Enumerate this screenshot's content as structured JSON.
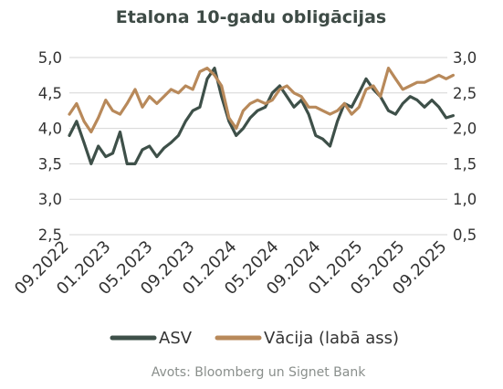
{
  "chart_data": {
    "type": "line",
    "title": "Etalona 10-gadu obligācijas",
    "source": "Avots: Bloomberg un Signet Bank",
    "x_ticks": [
      "09.2022",
      "01.2023",
      "05.2023",
      "09.2023",
      "01.2024",
      "05.2024",
      "09.2024",
      "01.2025",
      "05.2025",
      "09.2025"
    ],
    "x_range": [
      "2022-09",
      "2025-09"
    ],
    "y_left": {
      "ticks": [
        "2,5",
        "3,0",
        "3,5",
        "4,0",
        "4,5",
        "5,0"
      ],
      "range": [
        2.5,
        5.0
      ]
    },
    "y_right": {
      "ticks": [
        "0,5",
        "1,0",
        "1,5",
        "2,0",
        "2,5",
        "3,0"
      ],
      "range": [
        0.5,
        3.0
      ]
    },
    "grid": true,
    "legend_position": "bottom",
    "series": [
      {
        "name": "ASV",
        "axis": "left",
        "color": "#3e5049",
        "x": [
          "2022-09-01",
          "2022-09-22",
          "2022-10-13",
          "2022-11-03",
          "2022-11-24",
          "2022-12-15",
          "2023-01-05",
          "2023-01-26",
          "2023-02-16",
          "2023-03-09",
          "2023-03-30",
          "2023-04-20",
          "2023-05-11",
          "2023-06-01",
          "2023-06-22",
          "2023-07-13",
          "2023-08-03",
          "2023-08-24",
          "2023-09-14",
          "2023-10-05",
          "2023-10-26",
          "2023-11-16",
          "2023-12-07",
          "2023-12-28",
          "2024-01-18",
          "2024-02-08",
          "2024-02-29",
          "2024-03-21",
          "2024-04-11",
          "2024-05-02",
          "2024-05-23",
          "2024-06-13",
          "2024-07-04",
          "2024-07-25",
          "2024-08-15",
          "2024-09-05",
          "2024-09-26",
          "2024-10-17",
          "2024-11-07",
          "2024-11-28",
          "2024-12-19",
          "2025-01-09",
          "2025-01-30",
          "2025-02-20",
          "2025-03-13",
          "2025-04-03",
          "2025-04-24",
          "2025-05-15",
          "2025-06-05",
          "2025-06-26",
          "2025-07-17",
          "2025-08-07",
          "2025-08-28",
          "2025-09-18"
        ],
        "values": [
          3.9,
          4.1,
          3.8,
          3.5,
          3.75,
          3.6,
          3.65,
          3.95,
          3.5,
          3.5,
          3.7,
          3.75,
          3.6,
          3.72,
          3.8,
          3.9,
          4.1,
          4.25,
          4.3,
          4.7,
          4.85,
          4.45,
          4.1,
          3.9,
          4.0,
          4.15,
          4.25,
          4.3,
          4.5,
          4.6,
          4.45,
          4.3,
          4.4,
          4.2,
          3.9,
          3.85,
          3.75,
          4.1,
          4.35,
          4.3,
          4.5,
          4.7,
          4.55,
          4.45,
          4.25,
          4.2,
          4.35,
          4.45,
          4.4,
          4.3,
          4.4,
          4.3,
          4.15,
          4.18
        ]
      },
      {
        "name": "Vācija (labā ass)",
        "axis": "right",
        "color": "#b8895a",
        "x": [
          "2022-09-01",
          "2022-09-22",
          "2022-10-13",
          "2022-11-03",
          "2022-11-24",
          "2022-12-15",
          "2023-01-05",
          "2023-01-26",
          "2023-02-16",
          "2023-03-09",
          "2023-03-30",
          "2023-04-20",
          "2023-05-11",
          "2023-06-01",
          "2023-06-22",
          "2023-07-13",
          "2023-08-03",
          "2023-08-24",
          "2023-09-14",
          "2023-10-05",
          "2023-10-26",
          "2023-11-16",
          "2023-12-07",
          "2023-12-28",
          "2024-01-18",
          "2024-02-08",
          "2024-02-29",
          "2024-03-21",
          "2024-04-11",
          "2024-05-02",
          "2024-05-23",
          "2024-06-13",
          "2024-07-04",
          "2024-07-25",
          "2024-08-15",
          "2024-09-05",
          "2024-09-26",
          "2024-10-17",
          "2024-11-07",
          "2024-11-28",
          "2024-12-19",
          "2025-01-09",
          "2025-01-30",
          "2025-02-20",
          "2025-03-13",
          "2025-04-03",
          "2025-04-24",
          "2025-05-15",
          "2025-06-05",
          "2025-06-26",
          "2025-07-17",
          "2025-08-07",
          "2025-08-28",
          "2025-09-18"
        ],
        "values": [
          2.2,
          2.35,
          2.1,
          1.95,
          2.15,
          2.4,
          2.25,
          2.2,
          2.35,
          2.55,
          2.3,
          2.45,
          2.35,
          2.45,
          2.55,
          2.5,
          2.6,
          2.55,
          2.8,
          2.85,
          2.75,
          2.6,
          2.15,
          2.0,
          2.25,
          2.35,
          2.4,
          2.35,
          2.4,
          2.55,
          2.6,
          2.5,
          2.45,
          2.3,
          2.3,
          2.25,
          2.2,
          2.25,
          2.35,
          2.2,
          2.3,
          2.55,
          2.6,
          2.45,
          2.85,
          2.7,
          2.55,
          2.6,
          2.65,
          2.65,
          2.7,
          2.75,
          2.7,
          2.75
        ]
      }
    ]
  }
}
